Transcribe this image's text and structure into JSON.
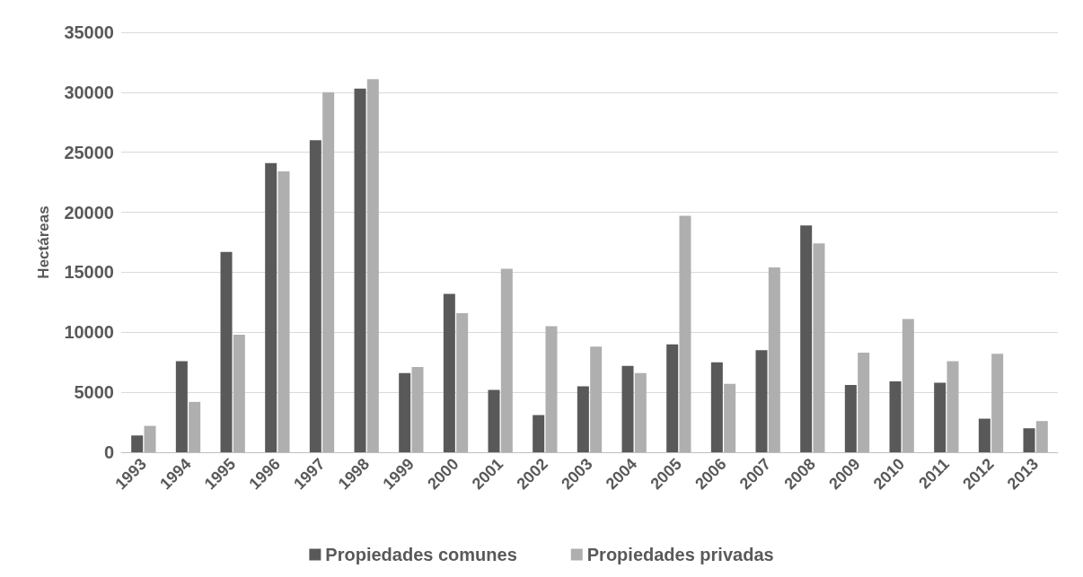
{
  "chart_data": {
    "type": "bar",
    "ylabel": "Hectáreas",
    "categories": [
      "1993",
      "1994",
      "1995",
      "1996",
      "1997",
      "1998",
      "1999",
      "2000",
      "2001",
      "2002",
      "2003",
      "2004",
      "2005",
      "2006",
      "2007",
      "2008",
      "2009",
      "2010",
      "2011",
      "2012",
      "2013"
    ],
    "series": [
      {
        "name": "Propiedades comunes",
        "color": "#595959",
        "values": [
          1400,
          7600,
          16700,
          24100,
          26000,
          30300,
          6600,
          13200,
          5200,
          3100,
          5500,
          7200,
          9000,
          7500,
          8500,
          18900,
          5600,
          5900,
          5800,
          2800,
          2000
        ]
      },
      {
        "name": "Propiedades privadas",
        "color": "#afafaf",
        "values": [
          2200,
          4200,
          9800,
          23400,
          30000,
          31100,
          7100,
          11600,
          15300,
          10500,
          8800,
          6600,
          19700,
          5700,
          15400,
          17400,
          8300,
          11100,
          7600,
          8200,
          2600
        ]
      }
    ],
    "ylim": [
      0,
      35000
    ],
    "yticks": [
      0,
      5000,
      10000,
      15000,
      20000,
      25000,
      30000,
      35000
    ],
    "grid": "y",
    "legend": "bottom"
  }
}
